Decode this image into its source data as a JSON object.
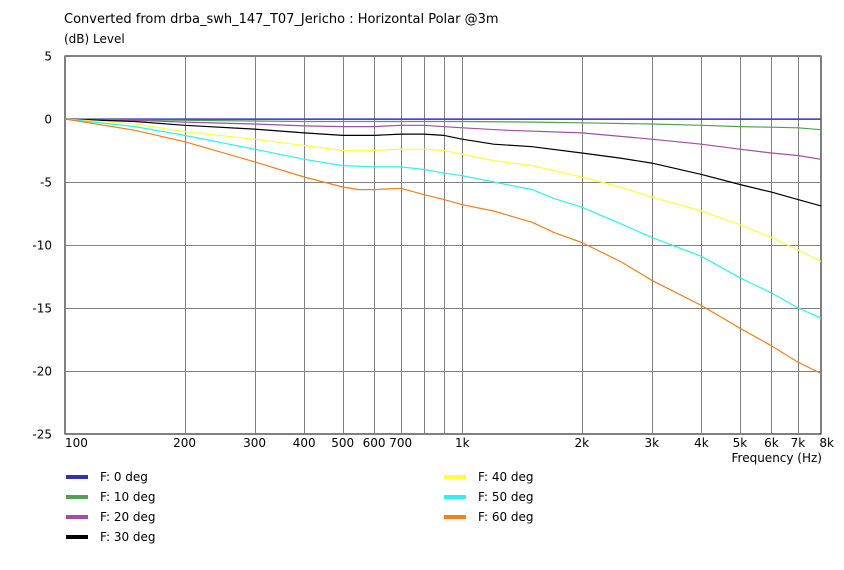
{
  "chart_data": {
    "type": "line",
    "title": "Converted from drba_swh_147_T07_Jericho : Horizontal Polar @3m",
    "ylabel": "(dB)  Level",
    "xlabel": "Frequency  (Hz)",
    "x_scale": "log",
    "xlim": [
      100,
      8000
    ],
    "ylim": [
      -25,
      5
    ],
    "y_ticks": [
      5,
      0,
      -5,
      -10,
      -15,
      -20,
      -25
    ],
    "x_ticks": [
      {
        "value": 100,
        "label": "100"
      },
      {
        "value": 200,
        "label": "200"
      },
      {
        "value": 300,
        "label": "300"
      },
      {
        "value": 400,
        "label": "400"
      },
      {
        "value": 500,
        "label": "500"
      },
      {
        "value": 600,
        "label": "600"
      },
      {
        "value": 700,
        "label": "700"
      },
      {
        "value": 1000,
        "label": "1k"
      },
      {
        "value": 2000,
        "label": "2k"
      },
      {
        "value": 3000,
        "label": "3k"
      },
      {
        "value": 4000,
        "label": "4k"
      },
      {
        "value": 5000,
        "label": "5k"
      },
      {
        "value": 6000,
        "label": "6k"
      },
      {
        "value": 7000,
        "label": "7k"
      },
      {
        "value": 8000,
        "label": "8k"
      }
    ],
    "gridlines_x": [
      100,
      200,
      300,
      400,
      500,
      600,
      700,
      800,
      900,
      1000,
      2000,
      3000,
      4000,
      5000,
      6000,
      7000,
      8000
    ],
    "grid": true,
    "legend_position": "bottom",
    "series": [
      {
        "name": "F: 0 deg",
        "color": "#3030c0",
        "points": [
          [
            100,
            0
          ],
          [
            8000,
            0
          ]
        ]
      },
      {
        "name": "F: 10 deg",
        "color": "#50a050",
        "points": [
          [
            100,
            0
          ],
          [
            200,
            -0.1
          ],
          [
            400,
            -0.2
          ],
          [
            700,
            -0.2
          ],
          [
            1000,
            -0.2
          ],
          [
            1500,
            -0.25
          ],
          [
            2000,
            -0.3
          ],
          [
            3000,
            -0.4
          ],
          [
            4000,
            -0.5
          ],
          [
            5000,
            -0.6
          ],
          [
            6000,
            -0.65
          ],
          [
            7000,
            -0.7
          ],
          [
            8000,
            -0.85
          ]
        ]
      },
      {
        "name": "F: 20 deg",
        "color": "#a050a0",
        "points": [
          [
            100,
            0
          ],
          [
            150,
            -0.1
          ],
          [
            200,
            -0.25
          ],
          [
            300,
            -0.4
          ],
          [
            400,
            -0.55
          ],
          [
            500,
            -0.6
          ],
          [
            600,
            -0.6
          ],
          [
            700,
            -0.5
          ],
          [
            800,
            -0.5
          ],
          [
            1000,
            -0.7
          ],
          [
            1300,
            -0.9
          ],
          [
            2000,
            -1.1
          ],
          [
            3000,
            -1.6
          ],
          [
            4000,
            -2.0
          ],
          [
            5000,
            -2.4
          ],
          [
            6000,
            -2.7
          ],
          [
            7000,
            -2.9
          ],
          [
            8000,
            -3.2
          ]
        ]
      },
      {
        "name": "F: 30 deg",
        "color": "#000000",
        "points": [
          [
            100,
            0
          ],
          [
            150,
            -0.2
          ],
          [
            200,
            -0.5
          ],
          [
            300,
            -0.8
          ],
          [
            400,
            -1.1
          ],
          [
            500,
            -1.3
          ],
          [
            600,
            -1.3
          ],
          [
            700,
            -1.2
          ],
          [
            800,
            -1.2
          ],
          [
            900,
            -1.3
          ],
          [
            1000,
            -1.6
          ],
          [
            1200,
            -2.0
          ],
          [
            1500,
            -2.2
          ],
          [
            2000,
            -2.7
          ],
          [
            2500,
            -3.1
          ],
          [
            3000,
            -3.5
          ],
          [
            4000,
            -4.4
          ],
          [
            5000,
            -5.2
          ],
          [
            6000,
            -5.8
          ],
          [
            7000,
            -6.4
          ],
          [
            8000,
            -6.9
          ]
        ]
      },
      {
        "name": "F: 40 deg",
        "color": "#ffff40",
        "points": [
          [
            100,
            0
          ],
          [
            150,
            -0.4
          ],
          [
            200,
            -1.0
          ],
          [
            300,
            -1.6
          ],
          [
            400,
            -2.1
          ],
          [
            500,
            -2.5
          ],
          [
            600,
            -2.5
          ],
          [
            700,
            -2.4
          ],
          [
            800,
            -2.4
          ],
          [
            900,
            -2.5
          ],
          [
            1000,
            -2.8
          ],
          [
            1200,
            -3.3
          ],
          [
            1500,
            -3.7
          ],
          [
            2000,
            -4.6
          ],
          [
            2500,
            -5.4
          ],
          [
            3000,
            -6.2
          ],
          [
            4000,
            -7.3
          ],
          [
            5000,
            -8.4
          ],
          [
            6000,
            -9.4
          ],
          [
            7000,
            -10.4
          ],
          [
            8000,
            -11.3
          ]
        ]
      },
      {
        "name": "F: 50 deg",
        "color": "#30f0f0",
        "points": [
          [
            100,
            0
          ],
          [
            150,
            -0.6
          ],
          [
            200,
            -1.3
          ],
          [
            300,
            -2.4
          ],
          [
            400,
            -3.2
          ],
          [
            500,
            -3.7
          ],
          [
            600,
            -3.8
          ],
          [
            700,
            -3.8
          ],
          [
            800,
            -4.0
          ],
          [
            900,
            -4.3
          ],
          [
            1000,
            -4.5
          ],
          [
            1200,
            -5.0
          ],
          [
            1500,
            -5.6
          ],
          [
            1700,
            -6.3
          ],
          [
            2000,
            -7.0
          ],
          [
            2500,
            -8.3
          ],
          [
            3000,
            -9.4
          ],
          [
            4000,
            -10.9
          ],
          [
            5000,
            -12.6
          ],
          [
            6000,
            -13.8
          ],
          [
            7000,
            -15.0
          ],
          [
            8000,
            -15.8
          ]
        ]
      },
      {
        "name": "F: 60 deg",
        "color": "#f08020",
        "points": [
          [
            100,
            0
          ],
          [
            150,
            -0.9
          ],
          [
            200,
            -1.8
          ],
          [
            300,
            -3.4
          ],
          [
            400,
            -4.6
          ],
          [
            500,
            -5.4
          ],
          [
            550,
            -5.6
          ],
          [
            600,
            -5.6
          ],
          [
            700,
            -5.5
          ],
          [
            800,
            -6.0
          ],
          [
            900,
            -6.4
          ],
          [
            1000,
            -6.8
          ],
          [
            1200,
            -7.3
          ],
          [
            1500,
            -8.2
          ],
          [
            1700,
            -9.0
          ],
          [
            2000,
            -9.8
          ],
          [
            2500,
            -11.3
          ],
          [
            3000,
            -12.8
          ],
          [
            4000,
            -14.8
          ],
          [
            5000,
            -16.6
          ],
          [
            6000,
            -18.0
          ],
          [
            7000,
            -19.3
          ],
          [
            8000,
            -20.2
          ]
        ]
      }
    ]
  }
}
